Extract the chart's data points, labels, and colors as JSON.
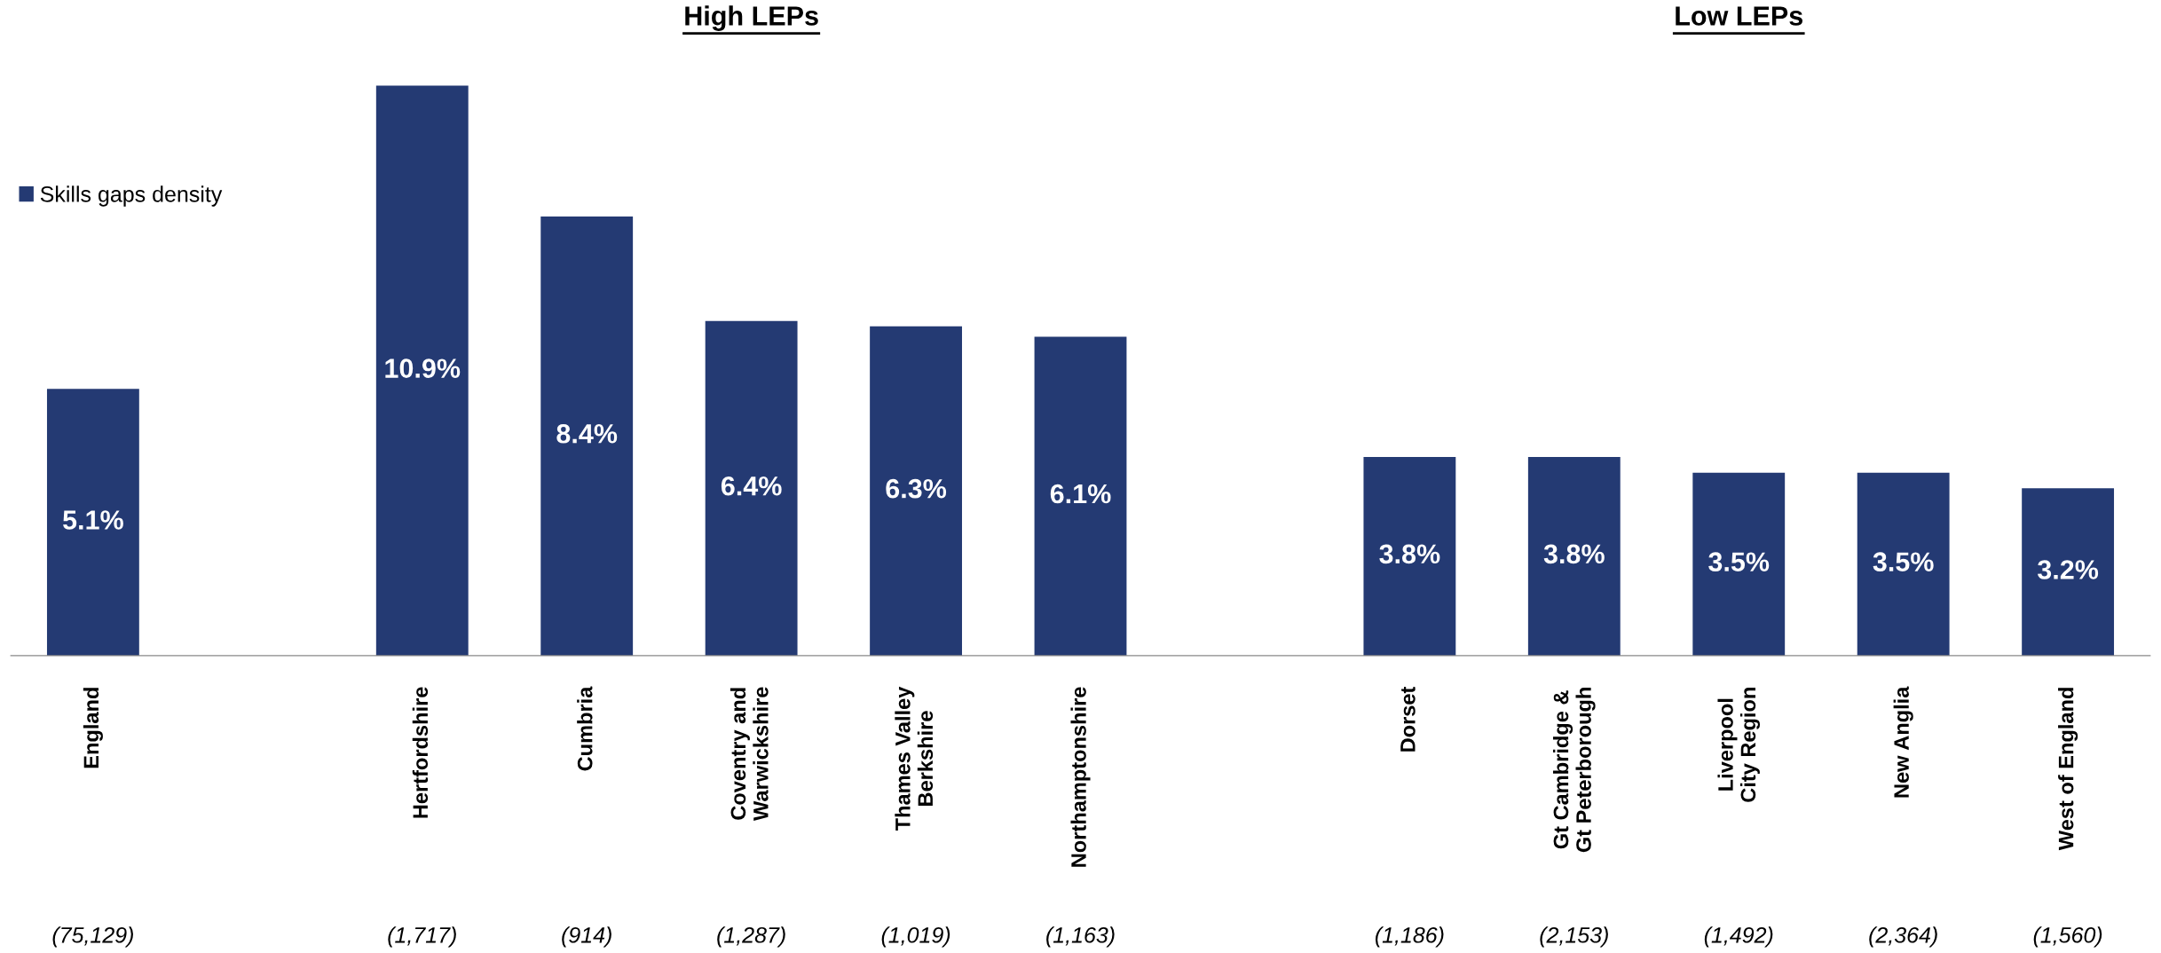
{
  "chart_data": {
    "type": "bar",
    "categories": [
      "England",
      null,
      "Hertfordshire",
      "Cumbria",
      "Coventry and\nWarwickshire",
      "Thames Valley\nBerkshire",
      "Northamptonshire",
      null,
      "Dorset",
      "Gt Cambridge &\nGt Peterborough",
      "Liverpool\nCity Region",
      "New Anglia",
      "West of England"
    ],
    "series": [
      {
        "name": "Skills gaps density",
        "color": "#243a73",
        "values": [
          5.1,
          null,
          10.9,
          8.4,
          6.4,
          6.3,
          6.1,
          null,
          3.8,
          3.8,
          3.5,
          3.5,
          3.2
        ],
        "value_labels": [
          "5.1%",
          null,
          "10.9%",
          "8.4%",
          "6.4%",
          "6.3%",
          "6.1%",
          null,
          "3.8%",
          "3.8%",
          "3.5%",
          "3.5%",
          "3.2%"
        ]
      }
    ],
    "annotations": [
      "(75,129)",
      "(1,717)",
      "(914)",
      "(1,287)",
      "(1,019)",
      "(1,163)",
      "(1,186)",
      "(2,153)",
      "(1,492)",
      "(2,364)",
      "(1,560)",
      "High LEPs",
      "Low LEPs"
    ],
    "legend": "top left",
    "tick_labels": "x",
    "grid": false
  }
}
